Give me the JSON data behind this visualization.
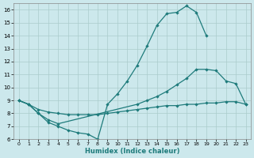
{
  "xlabel": "Humidex (Indice chaleur)",
  "bg_color": "#cce8ec",
  "grid_color": "#aacccc",
  "line_color": "#1e7b7b",
  "xlim": [
    -0.5,
    23.5
  ],
  "ylim": [
    6,
    16.5
  ],
  "xticks": [
    0,
    1,
    2,
    3,
    4,
    5,
    6,
    7,
    8,
    9,
    10,
    11,
    12,
    13,
    14,
    15,
    16,
    17,
    18,
    19,
    20,
    21,
    22,
    23
  ],
  "yticks": [
    6,
    7,
    8,
    9,
    10,
    11,
    12,
    13,
    14,
    15,
    16
  ],
  "s1x": [
    0,
    1,
    2,
    3,
    4,
    5,
    6,
    7,
    8,
    9,
    10,
    11,
    12,
    13,
    14,
    15,
    16,
    17,
    18,
    19
  ],
  "s1y": [
    9.0,
    8.7,
    8.0,
    7.3,
    7.0,
    6.7,
    6.5,
    6.4,
    6.0,
    8.7,
    9.5,
    10.5,
    11.7,
    13.2,
    14.8,
    15.7,
    15.8,
    16.3,
    15.8,
    14.0
  ],
  "s2x": [
    0,
    1,
    2,
    3,
    4,
    12,
    13,
    14,
    15,
    16,
    17,
    18,
    19,
    20,
    21,
    22,
    23
  ],
  "s2y": [
    9.0,
    8.7,
    8.0,
    7.5,
    7.2,
    8.7,
    9.0,
    9.3,
    9.7,
    10.2,
    10.7,
    11.4,
    11.4,
    11.3,
    10.5,
    10.3,
    8.7
  ],
  "s3x": [
    0,
    1,
    2,
    3,
    4,
    5,
    6,
    7,
    8,
    9,
    10,
    11,
    12,
    13,
    14,
    15,
    16,
    17,
    18,
    19,
    20,
    21,
    22,
    23
  ],
  "s3y": [
    9.0,
    8.7,
    8.3,
    8.1,
    8.0,
    7.9,
    7.9,
    7.9,
    7.9,
    8.0,
    8.1,
    8.2,
    8.3,
    8.4,
    8.5,
    8.6,
    8.6,
    8.7,
    8.7,
    8.8,
    8.8,
    8.9,
    8.9,
    8.7
  ]
}
